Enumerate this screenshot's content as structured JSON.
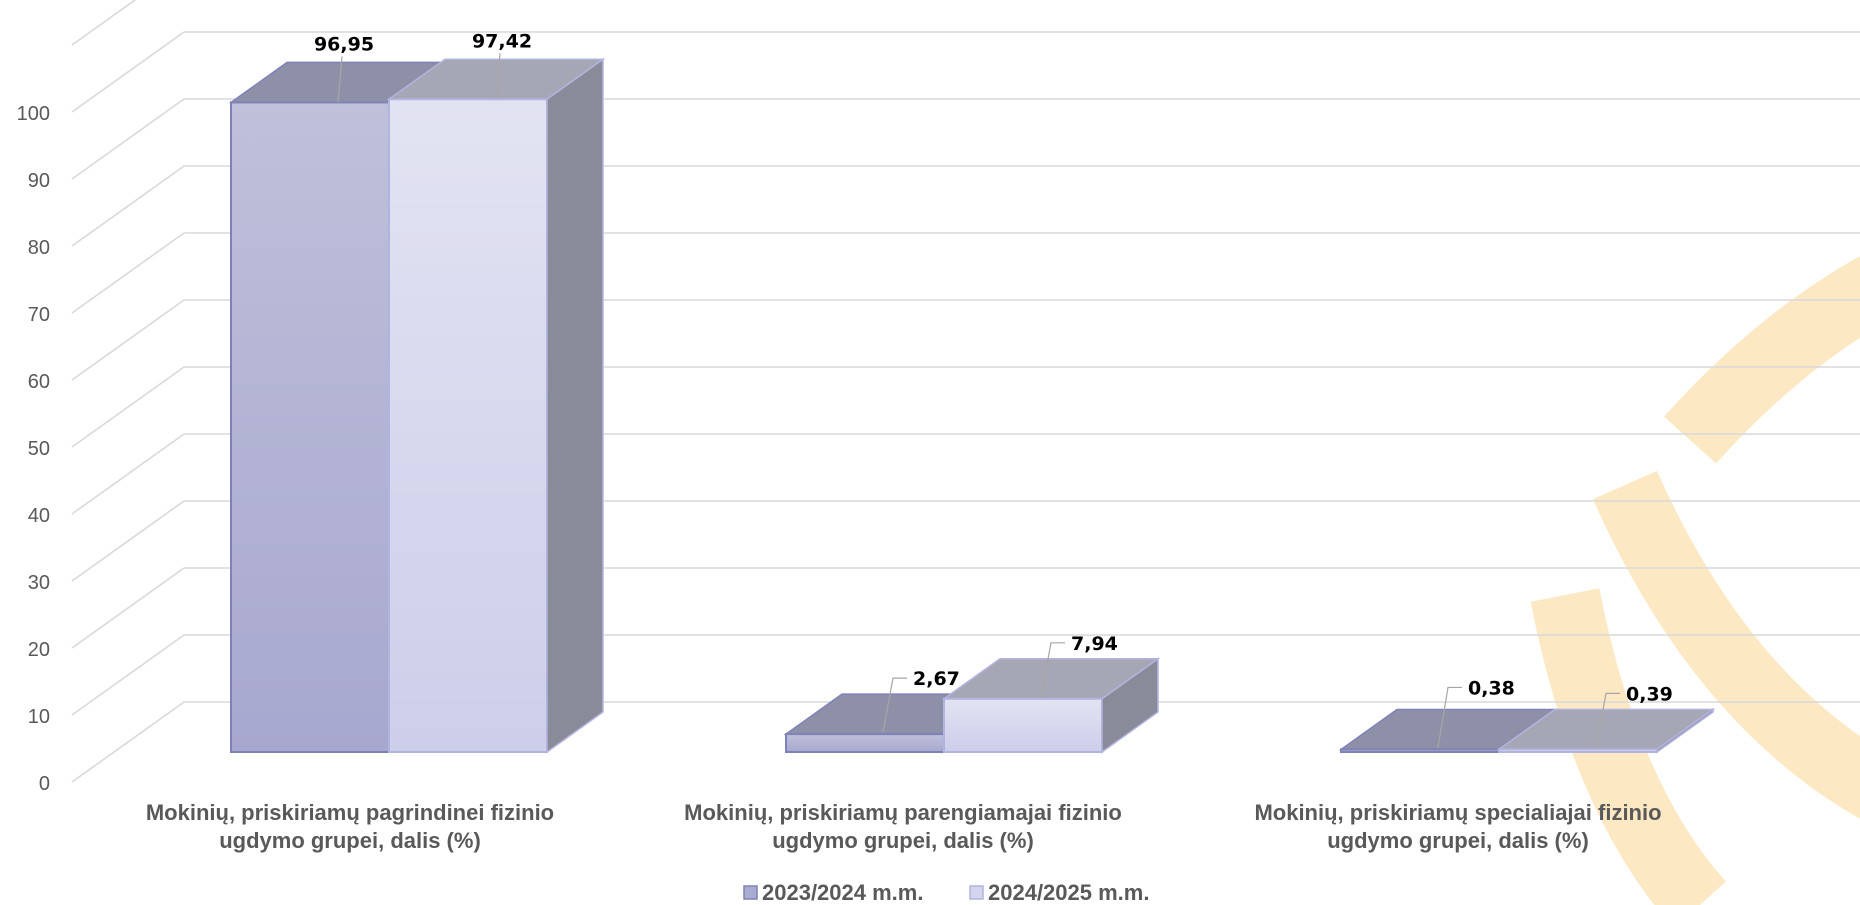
{
  "chart_data": {
    "type": "bar",
    "title": "",
    "xlabel": "",
    "ylabel": "",
    "ylim": [
      0,
      100
    ],
    "y_ticks": [
      "0",
      "10",
      "20",
      "30",
      "40",
      "50",
      "60",
      "70",
      "80",
      "90",
      "100"
    ],
    "grid": true,
    "legend_position": "bottom",
    "categories": [
      [
        "Mokinių, priskiriamų pagrindinei fizinio",
        "ugdymo grupei, dalis (%)"
      ],
      [
        "Mokinių, priskiriamų parengiamajai fizinio",
        "ugdymo grupei, dalis (%)"
      ],
      [
        "Mokinių, priskiriamų specialiajai fizinio",
        "ugdymo grupei, dalis (%)"
      ]
    ],
    "series": [
      {
        "name": "2023/2024 m.m.",
        "values": [
          96.95,
          2.67,
          0.38
        ],
        "labels": [
          "96,95",
          "2,67",
          "0,38"
        ],
        "color": "#a9abd0"
      },
      {
        "name": "2024/2025 m.m.",
        "values": [
          97.42,
          7.94,
          0.39
        ],
        "labels": [
          "97,42",
          "7,94",
          "0,39"
        ],
        "color": "#d3d4ee"
      }
    ]
  }
}
